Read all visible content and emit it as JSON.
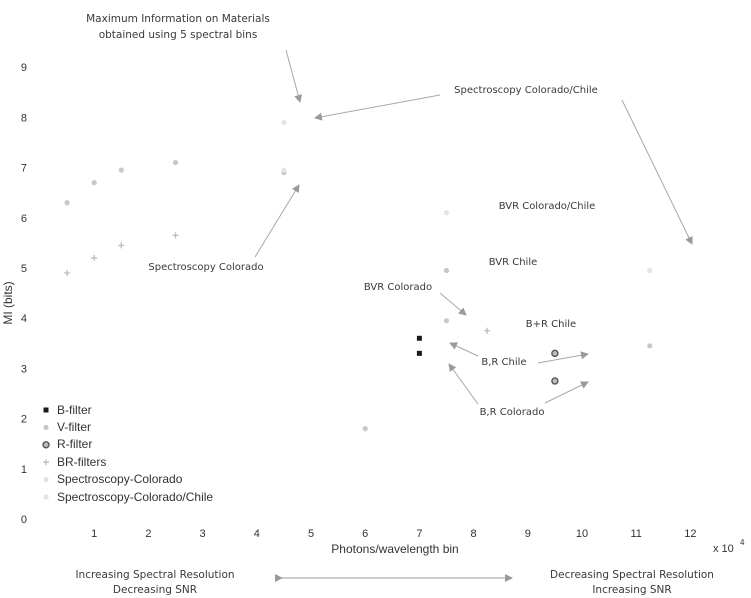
{
  "chart_data": {
    "type": "scatter",
    "xlabel": "Photons/wavelength bin",
    "ylabel": "MI (bits)",
    "x_multiplier": "x 10",
    "x_multiplier_exp": "4",
    "xlim": [
      0,
      12
    ],
    "ylim": [
      0,
      9.5
    ],
    "xticks": [
      "1",
      "2",
      "3",
      "4",
      "5",
      "6",
      "7",
      "8",
      "9",
      "10",
      "11",
      "12"
    ],
    "yticks": [
      "0",
      "1",
      "2",
      "3",
      "4",
      "5",
      "6",
      "7",
      "8",
      "9"
    ],
    "grid": false,
    "legend_position": "bottom-left",
    "series": [
      {
        "name": "B-filter",
        "marker": "square",
        "color": "#1a1a1a",
        "points": [
          [
            7.0,
            3.6
          ],
          [
            7.0,
            3.3
          ]
        ]
      },
      {
        "name": "V-filter",
        "marker": "dot",
        "color": "#c8c8c8",
        "points": [
          [
            0.5,
            6.3
          ],
          [
            1.0,
            6.7
          ],
          [
            1.5,
            6.95
          ],
          [
            2.5,
            7.1
          ],
          [
            4.5,
            6.9
          ],
          [
            7.5,
            4.95
          ],
          [
            7.5,
            3.95
          ],
          [
            6.0,
            1.8
          ],
          [
            11.25,
            3.45
          ]
        ]
      },
      {
        "name": "R-filter",
        "marker": "circle",
        "color": "#555555",
        "points": [
          [
            9.5,
            3.3
          ],
          [
            9.5,
            2.75
          ]
        ]
      },
      {
        "name": "BR-filters",
        "marker": "plus",
        "color": "#bbbbbb",
        "points": [
          [
            0.5,
            4.9
          ],
          [
            1.0,
            5.2
          ],
          [
            1.5,
            5.45
          ],
          [
            2.5,
            5.65
          ],
          [
            8.25,
            3.75
          ]
        ]
      },
      {
        "name": "Spectroscopy-Colorado",
        "marker": "dot",
        "color": "#e4e4e4",
        "points": [
          [
            4.5,
            6.95
          ]
        ]
      },
      {
        "name": "Spectroscopy-Colorado/Chile",
        "marker": "dot",
        "color": "#e4e4e4",
        "points": [
          [
            4.5,
            7.9
          ],
          [
            7.5,
            6.1
          ],
          [
            11.25,
            4.95
          ]
        ]
      }
    ],
    "annotations": [
      {
        "lines": [
          "Maximum Information on Materials",
          "obtained using 5 spectral bins"
        ]
      },
      {
        "lines": [
          "Spectroscopy Colorado/Chile"
        ]
      },
      {
        "lines": [
          "Spectroscopy Colorado"
        ]
      },
      {
        "lines": [
          "BVR Colorado/Chile"
        ]
      },
      {
        "lines": [
          "BVR Chile"
        ]
      },
      {
        "lines": [
          "BVR Colorado"
        ]
      },
      {
        "lines": [
          "B+R Chile"
        ]
      },
      {
        "lines": [
          "B,R Chile"
        ]
      },
      {
        "lines": [
          "B,R Colorado"
        ]
      }
    ],
    "footer": {
      "left": [
        "Increasing Spectral Resolution",
        "Decreasing SNR"
      ],
      "right": [
        "Decreasing Spectral Resolution",
        "Increasing SNR"
      ]
    }
  }
}
